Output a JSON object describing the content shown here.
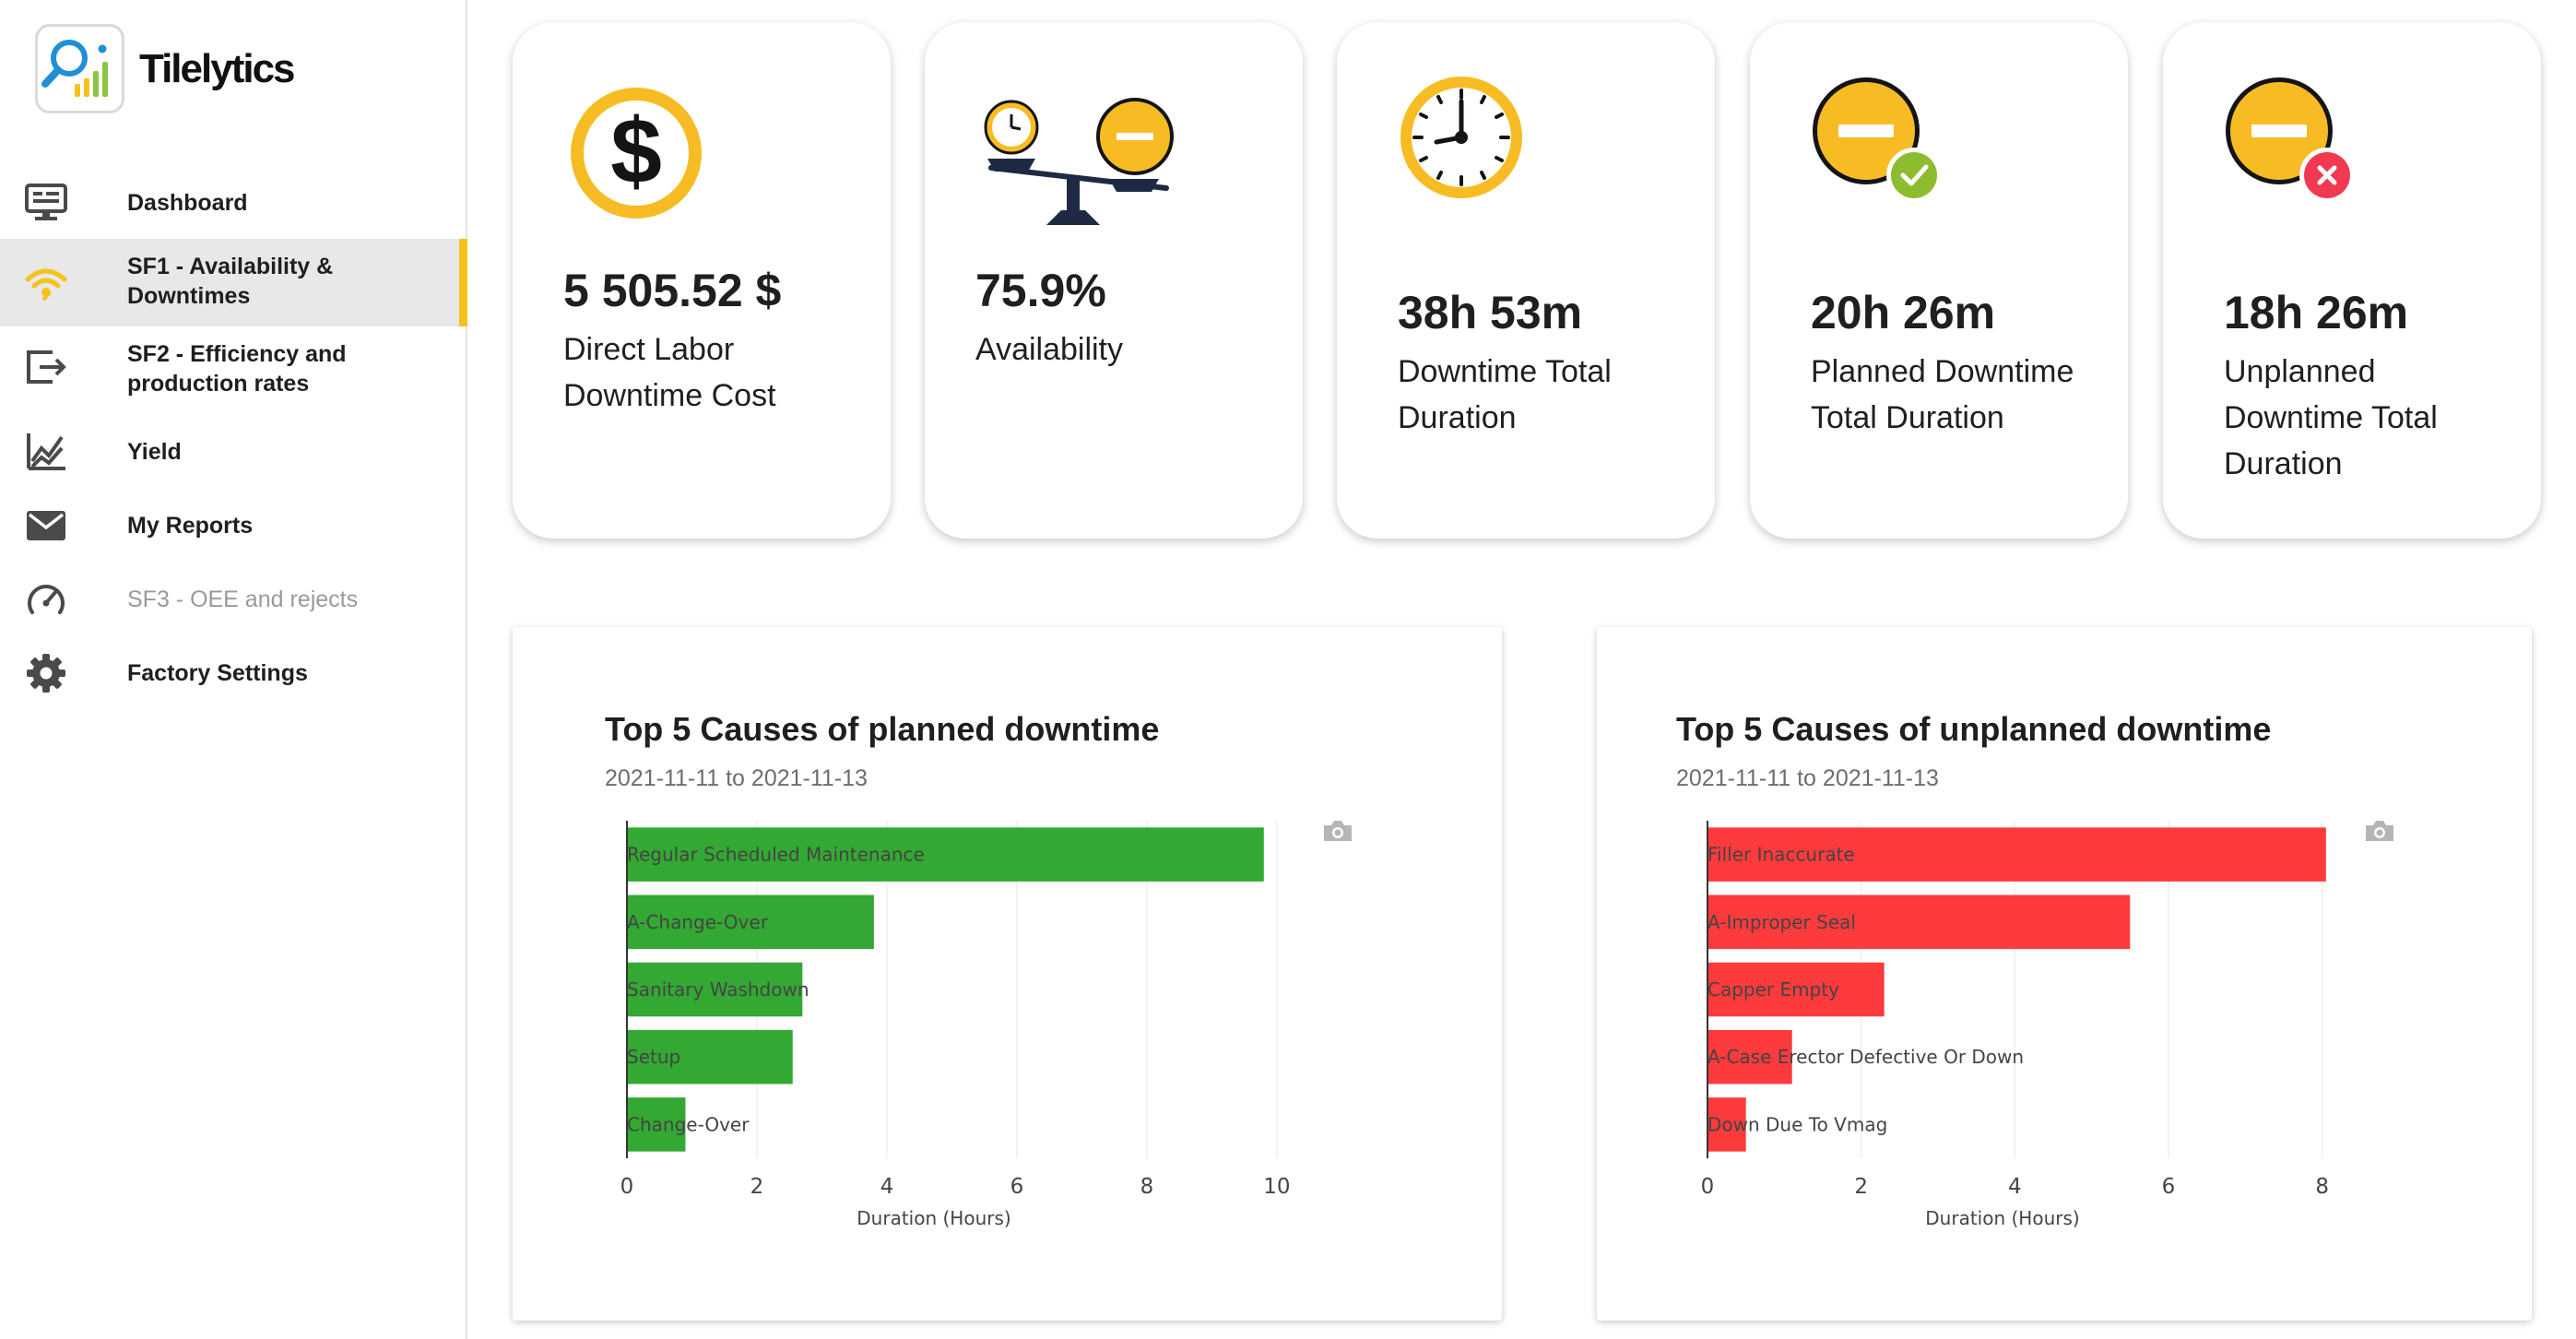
{
  "app": {
    "logo_text": "Tilelytics"
  },
  "sidebar": {
    "items": [
      {
        "label": "Dashboard",
        "icon": "monitor-icon",
        "active": false,
        "disabled": false
      },
      {
        "label": "SF1 - Availability &\nDowntimes",
        "icon": "wifi-signal-icon",
        "active": true,
        "disabled": false
      },
      {
        "label": "SF2 - Efficiency and\nproduction rates",
        "icon": "export-icon",
        "active": false,
        "disabled": false
      },
      {
        "label": "Yield",
        "icon": "trend-chart-icon",
        "active": false,
        "disabled": false
      },
      {
        "label": "My Reports",
        "icon": "mail-icon",
        "active": false,
        "disabled": false
      },
      {
        "label": "SF3 - OEE and rejects",
        "icon": "gauge-icon",
        "active": false,
        "disabled": true
      },
      {
        "label": "Factory Settings",
        "icon": "gear-icon",
        "active": false,
        "disabled": false
      }
    ],
    "accent_color": "#f5c21b"
  },
  "kpis": [
    {
      "value": "5 505.52 $",
      "label": "Direct Labor\nDowntime Cost",
      "icon": "dollar-coin-icon"
    },
    {
      "value": "75.9%",
      "label": "Availability",
      "icon": "balance-scale-icon"
    },
    {
      "value": "38h 53m",
      "label": "Downtime Total\nDuration",
      "icon": "clock-icon"
    },
    {
      "value": "20h 26m",
      "label": "Planned Downtime\nTotal Duration",
      "icon": "minus-check-icon"
    },
    {
      "value": "18h 26m",
      "label": "Unplanned\nDowntime Total\nDuration",
      "icon": "minus-cross-icon"
    }
  ],
  "charts": {
    "planned": {
      "title": "Top 5 Causes of planned downtime",
      "subtitle": "2021-11-11 to 2021-11-13"
    },
    "unplanned": {
      "title": "Top 5 Causes of unplanned downtime",
      "subtitle": "2021-11-11 to 2021-11-13"
    }
  },
  "chart_data": [
    {
      "type": "bar",
      "orientation": "horizontal",
      "categories": [
        "Regular Scheduled Maintenance",
        "A-Change-Over",
        "Sanitary Washdown",
        "Setup",
        "Change-Over"
      ],
      "values": [
        9.8,
        3.8,
        2.7,
        2.55,
        0.9
      ],
      "color": "#33a833",
      "xlabel": "Duration (Hours)",
      "xlim": [
        0,
        10.3
      ],
      "xticks": [
        0,
        2,
        4,
        6,
        8,
        10
      ],
      "grid": true
    },
    {
      "type": "bar",
      "orientation": "horizontal",
      "categories": [
        "Filler Inaccurate",
        "A-Improper Seal",
        "Capper Empty",
        "A-Case Erector Defective Or Down",
        "Down Due To Vmag"
      ],
      "values": [
        8.05,
        5.5,
        2.3,
        1.1,
        0.5
      ],
      "color": "#fd3a3c",
      "xlabel": "Duration (Hours)",
      "xlim": [
        0,
        8.4
      ],
      "xticks": [
        0,
        2,
        4,
        6,
        8
      ],
      "grid": true
    }
  ]
}
